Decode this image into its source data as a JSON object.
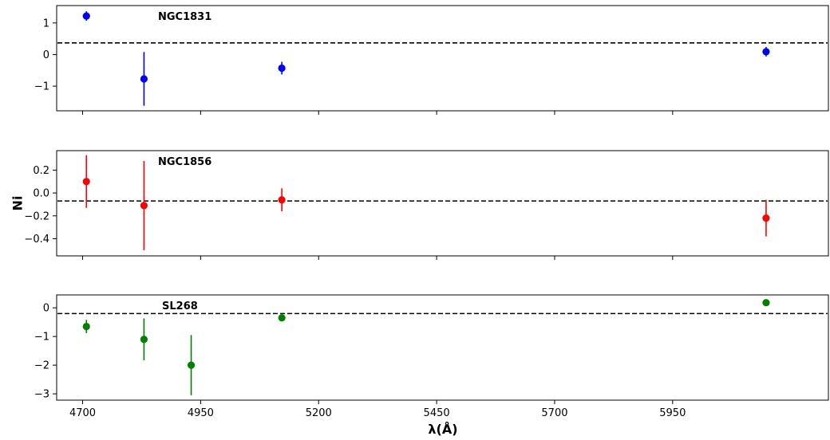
{
  "chart_data": {
    "type": "scatter",
    "xlabel": "λ(Å)",
    "ylabel": "Ni",
    "xlim": [
      4645,
      6280
    ],
    "xticks": [
      4700,
      4950,
      5200,
      5450,
      5700,
      5950
    ],
    "xtick_labels": [
      "4700",
      "4950",
      "5200",
      "5450",
      "5700",
      "5950"
    ],
    "grid": false,
    "panels": [
      {
        "label": "NGC1831",
        "color": "#0000ff",
        "ylim": [
          -1.78,
          1.55
        ],
        "yticks": [
          1,
          0,
          -1
        ],
        "ytick_labels": [
          "1",
          "0",
          "−1"
        ],
        "reference_line": 0.37,
        "points": [
          {
            "x": 4708,
            "y": 1.22,
            "err": 0.15
          },
          {
            "x": 4830,
            "y": -0.77,
            "err": 0.85
          },
          {
            "x": 5122,
            "y": -0.43,
            "err": 0.2
          },
          {
            "x": 6148,
            "y": 0.09,
            "err": 0.15
          }
        ]
      },
      {
        "label": "NGC1856",
        "color": "#ff0000",
        "ylim": [
          -0.55,
          0.37
        ],
        "yticks": [
          0.2,
          0.0,
          -0.2,
          -0.4
        ],
        "ytick_labels": [
          "0.2",
          "0.0",
          "−0.2",
          "−0.4"
        ],
        "reference_line": -0.07,
        "points": [
          {
            "x": 4708,
            "y": 0.1,
            "err": 0.23
          },
          {
            "x": 4830,
            "y": -0.11,
            "err": 0.39
          },
          {
            "x": 5122,
            "y": -0.06,
            "err": 0.1
          },
          {
            "x": 6148,
            "y": -0.22,
            "err": 0.16
          }
        ]
      },
      {
        "label": "SL268",
        "color": "#008000",
        "ylim": [
          -3.22,
          0.45
        ],
        "yticks": [
          0,
          -1,
          -2,
          -3
        ],
        "ytick_labels": [
          "0",
          "−1",
          "−2",
          "−3"
        ],
        "reference_line": -0.2,
        "points": [
          {
            "x": 4708,
            "y": -0.65,
            "err": 0.23
          },
          {
            "x": 4830,
            "y": -1.1,
            "err": 0.73
          },
          {
            "x": 4930,
            "y": -2.0,
            "err": 1.05
          },
          {
            "x": 5122,
            "y": -0.35,
            "err": 0.06
          },
          {
            "x": 6148,
            "y": 0.18,
            "err": 0.05
          }
        ]
      }
    ]
  }
}
